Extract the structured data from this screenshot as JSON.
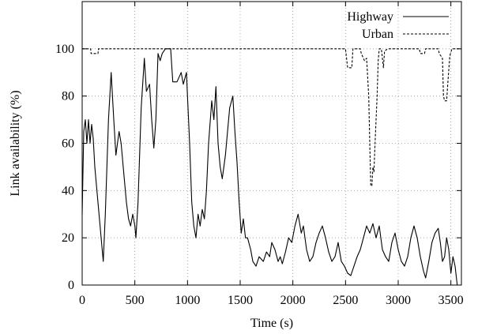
{
  "chart_data": {
    "type": "line",
    "title": "",
    "xlabel": "Time (s)",
    "ylabel": "Link availability (%)",
    "xlim": [
      0,
      3600
    ],
    "ylim": [
      0,
      120
    ],
    "xticks": [
      0,
      500,
      1000,
      1500,
      2000,
      2500,
      3000,
      3500
    ],
    "yticks": [
      0,
      20,
      40,
      60,
      80,
      100
    ],
    "grid": true,
    "legend_position": "top-right",
    "series": [
      {
        "name": "Highway",
        "style": "solid",
        "color": "#000000",
        "points": [
          [
            0,
            30
          ],
          [
            15,
            65
          ],
          [
            30,
            70
          ],
          [
            45,
            60
          ],
          [
            60,
            70
          ],
          [
            75,
            60
          ],
          [
            90,
            68
          ],
          [
            105,
            62
          ],
          [
            120,
            50
          ],
          [
            150,
            35
          ],
          [
            180,
            20
          ],
          [
            200,
            10
          ],
          [
            220,
            30
          ],
          [
            250,
            70
          ],
          [
            275,
            90
          ],
          [
            300,
            70
          ],
          [
            320,
            55
          ],
          [
            350,
            65
          ],
          [
            370,
            60
          ],
          [
            400,
            45
          ],
          [
            420,
            35
          ],
          [
            440,
            28
          ],
          [
            460,
            25
          ],
          [
            480,
            30
          ],
          [
            500,
            25
          ],
          [
            510,
            20
          ],
          [
            530,
            35
          ],
          [
            560,
            75
          ],
          [
            590,
            96
          ],
          [
            610,
            82
          ],
          [
            640,
            85
          ],
          [
            660,
            70
          ],
          [
            680,
            58
          ],
          [
            700,
            70
          ],
          [
            720,
            98
          ],
          [
            740,
            95
          ],
          [
            760,
            98
          ],
          [
            790,
            100
          ],
          [
            840,
            100
          ],
          [
            860,
            86
          ],
          [
            900,
            86
          ],
          [
            940,
            90
          ],
          [
            960,
            85
          ],
          [
            990,
            90
          ],
          [
            1000,
            80
          ],
          [
            1020,
            60
          ],
          [
            1040,
            35
          ],
          [
            1060,
            25
          ],
          [
            1080,
            20
          ],
          [
            1100,
            30
          ],
          [
            1120,
            25
          ],
          [
            1140,
            32
          ],
          [
            1160,
            28
          ],
          [
            1180,
            40
          ],
          [
            1200,
            60
          ],
          [
            1230,
            78
          ],
          [
            1250,
            70
          ],
          [
            1270,
            84
          ],
          [
            1290,
            60
          ],
          [
            1310,
            50
          ],
          [
            1330,
            45
          ],
          [
            1360,
            55
          ],
          [
            1400,
            75
          ],
          [
            1430,
            80
          ],
          [
            1450,
            65
          ],
          [
            1470,
            52
          ],
          [
            1490,
            35
          ],
          [
            1510,
            22
          ],
          [
            1530,
            28
          ],
          [
            1550,
            20
          ],
          [
            1570,
            20
          ],
          [
            1600,
            15
          ],
          [
            1620,
            10
          ],
          [
            1650,
            8
          ],
          [
            1680,
            12
          ],
          [
            1720,
            10
          ],
          [
            1750,
            14
          ],
          [
            1780,
            12
          ],
          [
            1800,
            18
          ],
          [
            1830,
            15
          ],
          [
            1860,
            10
          ],
          [
            1880,
            12
          ],
          [
            1900,
            9
          ],
          [
            1930,
            14
          ],
          [
            1960,
            20
          ],
          [
            1990,
            18
          ],
          [
            2020,
            25
          ],
          [
            2050,
            30
          ],
          [
            2080,
            22
          ],
          [
            2100,
            25
          ],
          [
            2130,
            15
          ],
          [
            2160,
            10
          ],
          [
            2190,
            12
          ],
          [
            2220,
            18
          ],
          [
            2250,
            22
          ],
          [
            2280,
            25
          ],
          [
            2310,
            20
          ],
          [
            2340,
            14
          ],
          [
            2370,
            10
          ],
          [
            2400,
            12
          ],
          [
            2430,
            18
          ],
          [
            2460,
            10
          ],
          [
            2490,
            8
          ],
          [
            2520,
            5
          ],
          [
            2550,
            4
          ],
          [
            2580,
            8
          ],
          [
            2610,
            12
          ],
          [
            2640,
            15
          ],
          [
            2670,
            20
          ],
          [
            2700,
            25
          ],
          [
            2730,
            22
          ],
          [
            2760,
            26
          ],
          [
            2790,
            20
          ],
          [
            2820,
            25
          ],
          [
            2850,
            15
          ],
          [
            2880,
            12
          ],
          [
            2910,
            10
          ],
          [
            2940,
            18
          ],
          [
            2970,
            22
          ],
          [
            3000,
            15
          ],
          [
            3030,
            10
          ],
          [
            3060,
            8
          ],
          [
            3090,
            12
          ],
          [
            3120,
            20
          ],
          [
            3150,
            25
          ],
          [
            3180,
            20
          ],
          [
            3210,
            12
          ],
          [
            3240,
            6
          ],
          [
            3260,
            3
          ],
          [
            3290,
            10
          ],
          [
            3320,
            18
          ],
          [
            3350,
            22
          ],
          [
            3380,
            24
          ],
          [
            3400,
            18
          ],
          [
            3420,
            10
          ],
          [
            3440,
            12
          ],
          [
            3460,
            20
          ],
          [
            3480,
            15
          ],
          [
            3500,
            5
          ],
          [
            3520,
            12
          ],
          [
            3540,
            8
          ],
          [
            3560,
            0
          ]
        ]
      },
      {
        "name": "Urban",
        "style": "dashed",
        "color": "#000000",
        "points": [
          [
            0,
            100
          ],
          [
            80,
            100
          ],
          [
            85,
            98
          ],
          [
            150,
            98
          ],
          [
            155,
            100
          ],
          [
            2500,
            100
          ],
          [
            2520,
            92
          ],
          [
            2560,
            92
          ],
          [
            2570,
            100
          ],
          [
            2640,
            100
          ],
          [
            2650,
            98
          ],
          [
            2680,
            95
          ],
          [
            2700,
            96
          ],
          [
            2720,
            80
          ],
          [
            2730,
            60
          ],
          [
            2740,
            42
          ],
          [
            2750,
            42
          ],
          [
            2760,
            50
          ],
          [
            2770,
            48
          ],
          [
            2780,
            60
          ],
          [
            2790,
            70
          ],
          [
            2800,
            80
          ],
          [
            2810,
            95
          ],
          [
            2820,
            100
          ],
          [
            2840,
            100
          ],
          [
            2860,
            92
          ],
          [
            2870,
            99
          ],
          [
            2900,
            100
          ],
          [
            3200,
            100
          ],
          [
            3210,
            98
          ],
          [
            3250,
            98
          ],
          [
            3260,
            100
          ],
          [
            3380,
            100
          ],
          [
            3390,
            98
          ],
          [
            3420,
            96
          ],
          [
            3430,
            80
          ],
          [
            3440,
            78
          ],
          [
            3460,
            78
          ],
          [
            3470,
            85
          ],
          [
            3490,
            97
          ],
          [
            3510,
            100
          ],
          [
            3600,
            100
          ]
        ]
      }
    ]
  }
}
